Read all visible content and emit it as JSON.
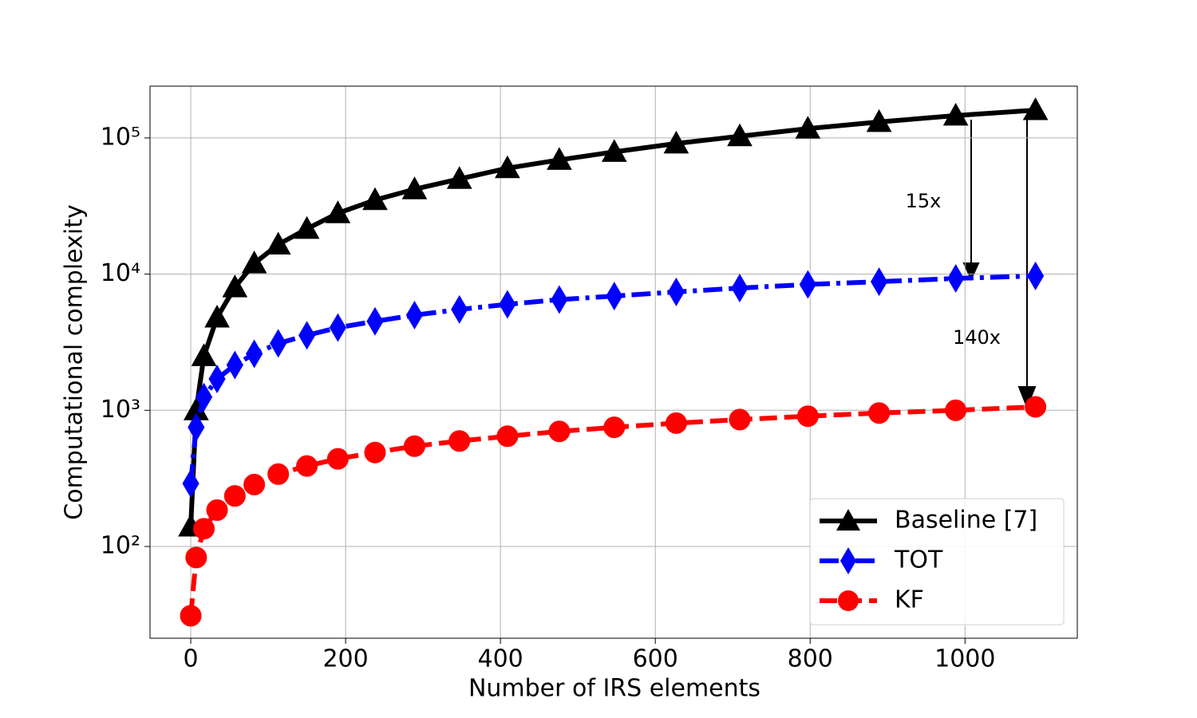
{
  "chart_data": {
    "type": "line",
    "xlabel": "Number of IRS elements",
    "ylabel": "Computational complexity",
    "x": [
      0,
      7,
      17,
      34,
      57,
      82,
      113,
      150,
      190,
      238,
      289,
      347,
      409,
      476,
      547,
      627,
      709,
      797,
      889,
      988,
      1091
    ],
    "series": [
      {
        "name": "Baseline [7]",
        "color": "#000000",
        "marker": "triangle",
        "dash": "solid",
        "values": [
          140,
          1000,
          2500,
          4800,
          8000,
          12000,
          16500,
          21500,
          28000,
          35000,
          42000,
          50000,
          60000,
          69000,
          79000,
          91000,
          103000,
          117000,
          131000,
          146000,
          160000
        ]
      },
      {
        "name": "TOT",
        "color": "#0000ff",
        "marker": "diamond",
        "dash": "dashdot",
        "values": [
          290,
          750,
          1250,
          1700,
          2150,
          2600,
          3100,
          3550,
          4050,
          4500,
          5000,
          5500,
          6000,
          6500,
          6900,
          7400,
          7900,
          8400,
          8800,
          9300,
          9700
        ]
      },
      {
        "name": "KF",
        "color": "#ff0000",
        "marker": "circle",
        "dash": "dashed",
        "values": [
          31,
          83,
          135,
          185,
          235,
          285,
          340,
          390,
          440,
          490,
          545,
          595,
          645,
          700,
          750,
          805,
          855,
          905,
          955,
          1000,
          1060
        ]
      }
    ],
    "xlim": [
      -52.6,
      1145
    ],
    "xticks": [
      0,
      200,
      400,
      600,
      800,
      1000
    ],
    "ylim": [
      21.2,
      240000
    ],
    "yscale": "log",
    "yticks": [
      {
        "value": 100,
        "label": "10²"
      },
      {
        "value": 1000,
        "label": "10³"
      },
      {
        "value": 10000,
        "label": "10⁴"
      },
      {
        "value": 100000,
        "label": "10⁵"
      }
    ],
    "grid": true,
    "legend": "lower right",
    "annotations": [
      "15x",
      "140x"
    ]
  }
}
